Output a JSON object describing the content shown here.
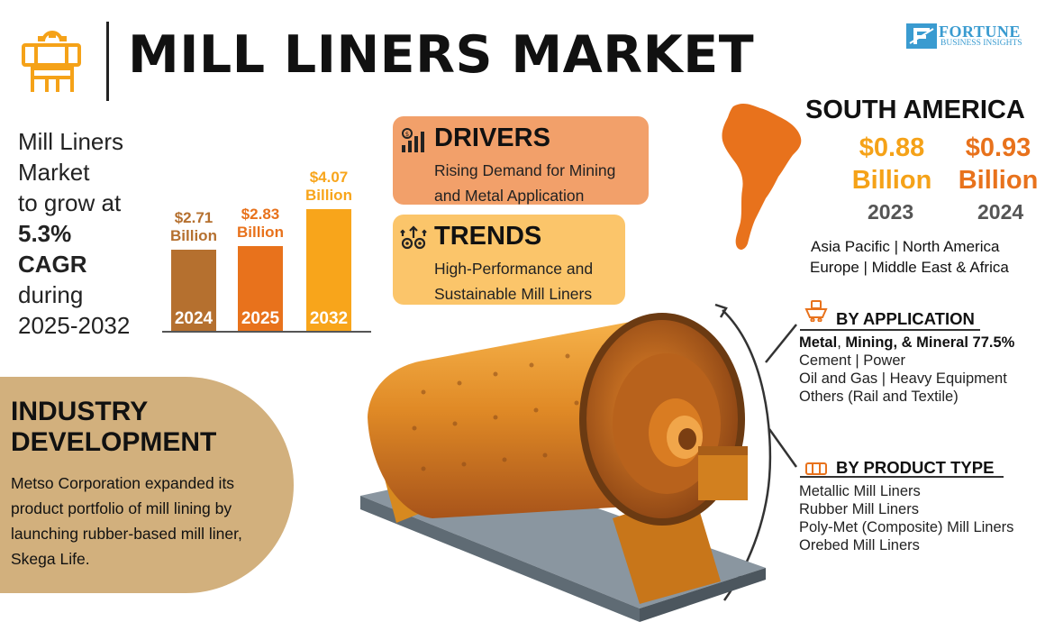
{
  "header": {
    "title": "MILL LINERS MARKET",
    "icon": "mill-machine-icon"
  },
  "logo": {
    "word": "FORTUNE",
    "sub": "BUSINESS INSIGHTS"
  },
  "cagr": {
    "line1": "Mill Liners",
    "line2": "Market",
    "line3": "to grow at",
    "rate": "5.3%",
    "label": "CAGR",
    "line6": "during",
    "period": "2025-2032"
  },
  "chart_data": {
    "type": "bar",
    "categories": [
      "2024",
      "2025",
      "2032"
    ],
    "values": [
      2.71,
      2.83,
      4.07
    ],
    "value_labels": [
      "$2.71",
      "$2.83",
      "$4.07"
    ],
    "unit_label": "Billion",
    "colors": [
      "#b5702f",
      "#e8721c",
      "#f8a51b"
    ],
    "ylim": [
      0,
      4.07
    ]
  },
  "drivers": {
    "title": "DRIVERS",
    "icon": "chart-bars-icon",
    "text_line1": "Rising Demand for Mining",
    "text_line2": "and Metal Application"
  },
  "trends": {
    "title": "TRENDS",
    "icon": "gears-arrows-icon",
    "text_line1": "High-Performance and",
    "text_line2": "Sustainable Mill Liners"
  },
  "region": {
    "title": "SOUTH AMERICA",
    "values": [
      {
        "amount": "$0.88",
        "unit": "Billion",
        "year": "2023",
        "color": "#f5a218"
      },
      {
        "amount": "$0.93",
        "unit": "Billion",
        "year": "2024",
        "color": "#e8721c"
      }
    ],
    "others_line1": "Asia Pacific  |  North America",
    "others_line2": "Europe  |  Middle East & Africa"
  },
  "by_application": {
    "title": "BY APPLICATION",
    "icon": "ore-cart-icon",
    "lead_part1": "Metal",
    "lead_sep": ", ",
    "lead_part2": "Mining, & Mineral 77.5%",
    "items": [
      "Cement  |  Power",
      "Oil and Gas  |   Heavy Equipment",
      "Others (Rail and Textile)"
    ]
  },
  "by_product_type": {
    "title": "BY PRODUCT TYPE",
    "icon": "liner-plate-icon",
    "items": [
      "Metallic Mill Liners",
      "Rubber Mill Liners",
      "Poly-Met (Composite) Mill Liners",
      "Orebed Mill Liners"
    ]
  },
  "industry": {
    "title_line1": "INDUSTRY",
    "title_line2": "DEVELOPMENT",
    "text": "Metso Corporation expanded its product portfolio of mill lining by launching rubber-based mill liner, Skega Life."
  }
}
